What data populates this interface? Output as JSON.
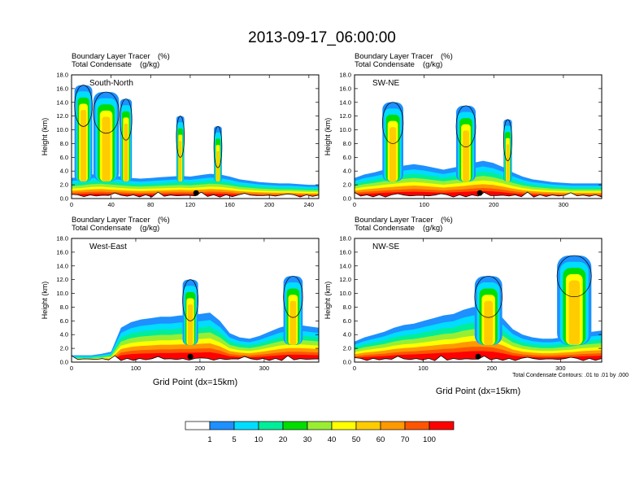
{
  "title": "2013-09-17_06:00:00",
  "colorbar": {
    "labels": [
      "1",
      "5",
      "10",
      "20",
      "30",
      "40",
      "50",
      "60",
      "70",
      "100"
    ],
    "colors": [
      "#ffffff",
      "#1e90ff",
      "#00ddff",
      "#00ee99",
      "#00dd00",
      "#99ee33",
      "#ffff00",
      "#ffcc00",
      "#ff9900",
      "#ff5500",
      "#ff0000"
    ]
  },
  "contour_note": "Total Condensate Contours: .01 to .01 by .000",
  "chart_data": [
    {
      "type": "heatmap",
      "panel_label": "South-North",
      "subtitle_left": "Boundary Layer Tracer",
      "subtitle_left_unit": "(%)",
      "subtitle_left2": "Total Condensate",
      "subtitle_left2_unit": "(g/kg)",
      "ylabel": "Height (km)",
      "xlabel": "",
      "xlim": [
        0,
        250
      ],
      "ylim": [
        0,
        18
      ],
      "xticks": [
        "0",
        "40",
        "80",
        "120",
        "160",
        "200",
        "240"
      ],
      "xtick_values": [
        0,
        40,
        80,
        120,
        160,
        200,
        240
      ],
      "yticks": [
        "0.0",
        "2.0",
        "4.0",
        "6.0",
        "8.0",
        "10.0",
        "12.0",
        "14.0",
        "16.0",
        "18.0"
      ],
      "pbl_top_km": [
        3,
        3.2,
        3.5,
        3.6,
        3.4,
        3.2,
        3.0,
        2.9,
        3.0,
        3.1,
        3.2,
        3.3,
        3.2,
        3.4,
        3.6,
        3.5,
        3.2,
        2.8,
        2.6,
        2.4,
        2.3,
        2.2,
        2.2,
        2.1,
        2.0,
        2.0
      ],
      "plumes": [
        {
          "x": 12,
          "top": 16.5,
          "w": 18
        },
        {
          "x": 35,
          "top": 15.5,
          "w": 26
        },
        {
          "x": 55,
          "top": 14.5,
          "w": 12
        },
        {
          "x": 110,
          "top": 12.0,
          "w": 8
        },
        {
          "x": 148,
          "top": 10.5,
          "w": 8
        }
      ],
      "marker_x": 126
    },
    {
      "type": "heatmap",
      "panel_label": "SW-NE",
      "subtitle_left": "Boundary Layer Tracer",
      "subtitle_left_unit": "(%)",
      "subtitle_left2": "Total Condensate",
      "subtitle_left2_unit": "(g/kg)",
      "ylabel": "Height (km)",
      "xlabel": "",
      "xlim": [
        0,
        355
      ],
      "ylim": [
        0,
        18
      ],
      "xticks": [
        "0",
        "100",
        "200",
        "300"
      ],
      "xtick_values": [
        0,
        100,
        200,
        300
      ],
      "yticks": [
        "0.0",
        "2.0",
        "4.0",
        "6.0",
        "8.0",
        "10.0",
        "12.0",
        "14.0",
        "16.0",
        "18.0"
      ],
      "pbl_top_km": [
        3.0,
        3.5,
        3.8,
        4.2,
        4.5,
        4.8,
        5.0,
        4.8,
        4.5,
        4.2,
        4.5,
        4.8,
        5.2,
        5.5,
        5.2,
        4.6,
        3.8,
        3.2,
        2.8,
        2.6,
        2.4,
        2.3,
        2.2,
        2.2,
        2.2,
        2.2
      ],
      "plumes": [
        {
          "x": 55,
          "top": 14.0,
          "w": 30
        },
        {
          "x": 160,
          "top": 13.5,
          "w": 28
        },
        {
          "x": 220,
          "top": 11.5,
          "w": 12
        }
      ],
      "marker_x": 180
    },
    {
      "type": "heatmap",
      "panel_label": "West-East",
      "subtitle_left": "Boundary Layer Tracer",
      "subtitle_left_unit": "(%)",
      "subtitle_left2": "Total Condensate",
      "subtitle_left2_unit": "(g/kg)",
      "ylabel": "Height (km)",
      "xlabel": "Grid Point (dx=15km)",
      "xlim": [
        0,
        385
      ],
      "ylim": [
        0,
        18
      ],
      "xticks": [
        "0",
        "100",
        "200",
        "300"
      ],
      "xtick_values": [
        0,
        100,
        200,
        300
      ],
      "yticks": [
        "0.0",
        "2.0",
        "4.0",
        "6.0",
        "8.0",
        "10.0",
        "12.0",
        "14.0",
        "16.0",
        "18.0"
      ],
      "pbl_top_km": [
        1.0,
        1.0,
        1.0,
        1.2,
        1.5,
        5.0,
        5.8,
        6.2,
        6.4,
        6.6,
        6.6,
        6.8,
        6.8,
        7.0,
        7.2,
        6.0,
        4.2,
        3.6,
        3.4,
        3.8,
        4.4,
        5.0,
        5.4,
        5.4,
        5.2,
        5.0
      ],
      "plumes": [
        {
          "x": 185,
          "top": 12.0,
          "w": 24
        },
        {
          "x": 345,
          "top": 12.5,
          "w": 30
        }
      ],
      "marker_x": 185
    },
    {
      "type": "heatmap",
      "panel_label": "NW-SE",
      "subtitle_left": "Boundary Layer Tracer",
      "subtitle_left_unit": "(%)",
      "subtitle_left2": "Total Condensate",
      "subtitle_left2_unit": "(g/kg)",
      "ylabel": "Height (km)",
      "xlabel": "Grid Point (dx=15km)",
      "xlim": [
        0,
        360
      ],
      "ylim": [
        0,
        18
      ],
      "xticks": [
        "0",
        "100",
        "200",
        "300"
      ],
      "xtick_values": [
        0,
        100,
        200,
        300
      ],
      "yticks": [
        "0.0",
        "2.0",
        "4.0",
        "6.0",
        "8.0",
        "10.0",
        "12.0",
        "14.0",
        "16.0",
        "18.0"
      ],
      "pbl_top_km": [
        3.0,
        3.6,
        4.0,
        4.4,
        5.0,
        5.4,
        5.6,
        6.0,
        6.4,
        6.8,
        7.0,
        7.6,
        8.0,
        8.0,
        7.6,
        6.4,
        4.8,
        4.0,
        3.6,
        3.4,
        3.4,
        3.6,
        3.8,
        4.2,
        4.4,
        4.6
      ],
      "plumes": [
        {
          "x": 195,
          "top": 12.5,
          "w": 40
        },
        {
          "x": 320,
          "top": 15.5,
          "w": 50
        }
      ],
      "marker_x": 180
    }
  ]
}
